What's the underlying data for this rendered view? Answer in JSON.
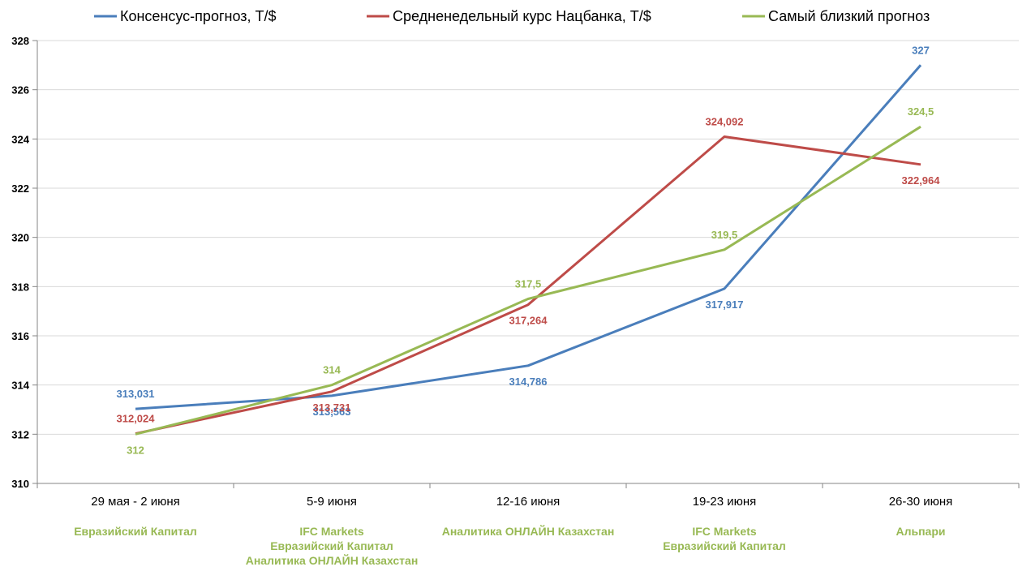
{
  "chart_data": {
    "type": "line",
    "title": "",
    "xlabel": "",
    "ylabel": "",
    "categories": [
      "29 мая - 2 июня",
      "5-9 июня",
      "12-16 июня",
      "19-23 июня",
      "26-30 июня"
    ],
    "subcategories": [
      [
        "Евразийский Капитал"
      ],
      [
        "IFC Markets",
        "Евразийский Капитал",
        "Аналитика ОНЛАЙН Казахстан"
      ],
      [
        "Аналитика ОНЛАЙН Казахстан"
      ],
      [
        "IFC Markets",
        "Евразийский Капитал"
      ],
      [
        "Альпари"
      ]
    ],
    "ylim": [
      310,
      328
    ],
    "yticks": [
      "310",
      "312",
      "314",
      "316",
      "318",
      "320",
      "322",
      "324",
      "326",
      "328"
    ],
    "grid": true,
    "legend": "top",
    "series": [
      {
        "name": "Консенсус-прогноз, Т/$",
        "color": "#4a7ebb",
        "values": [
          313.031,
          313.563,
          314.786,
          317.917,
          327
        ],
        "labels": [
          "313,031",
          "313,563",
          "314,786",
          "317,917",
          "327"
        ]
      },
      {
        "name": "Средненедельный курс Нацбанка, Т/$",
        "color": "#be4b48",
        "values": [
          312.024,
          313.731,
          317.264,
          324.092,
          322.964
        ],
        "labels": [
          "312,024",
          "313,731",
          "317,264",
          "324,092",
          "322,964"
        ]
      },
      {
        "name": "Самый близкий прогноз",
        "color": "#98b954",
        "values": [
          312,
          314,
          317.5,
          319.5,
          324.5
        ],
        "labels": [
          "312",
          "314",
          "317,5",
          "319,5",
          "324,5"
        ]
      }
    ],
    "subcategory_color": "#98b954"
  }
}
